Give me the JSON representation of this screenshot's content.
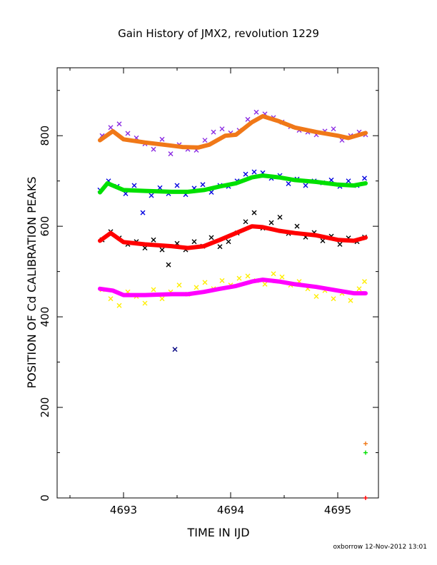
{
  "chart_data": {
    "type": "scatter",
    "title": "Gain History of JMX2, revolution 1229",
    "xlabel": "TIME IN IJD",
    "ylabel": "POSITION OF Cd CALIBRATION PEAKS",
    "xlim": [
      4692.38,
      4695.38
    ],
    "ylim": [
      0,
      950
    ],
    "x_ticks": [
      4693,
      4694,
      4695
    ],
    "x_tick_labels": [
      "4693",
      "4694",
      "4695"
    ],
    "y_ticks": [
      0,
      200,
      400,
      600,
      800
    ],
    "y_tick_labels": [
      "0",
      "200",
      "400",
      "600",
      "800"
    ],
    "grid": false,
    "footer": "oxborrow 12-Nov-2012 13:01",
    "series": [
      {
        "color": "#8a2be2",
        "marker": "x",
        "x": [
          4692.8,
          4692.88,
          4692.96,
          4693.04,
          4693.12,
          4693.2,
          4693.28,
          4693.36,
          4693.44,
          4693.52,
          4693.6,
          4693.68,
          4693.76,
          4693.84,
          4693.92,
          4694.0,
          4694.08,
          4694.16,
          4694.24,
          4694.32,
          4694.4,
          4694.48,
          4694.56,
          4694.64,
          4694.72,
          4694.8,
          4694.88,
          4694.96,
          4695.04,
          4695.12,
          4695.2,
          4695.26
        ],
        "y": [
          800,
          818,
          826,
          805,
          795,
          782,
          770,
          792,
          760,
          780,
          770,
          768,
          790,
          808,
          815,
          806,
          812,
          836,
          852,
          848,
          840,
          830,
          820,
          812,
          808,
          802,
          810,
          815,
          790,
          800,
          808,
          802
        ]
      },
      {
        "color": "#f07818",
        "marker": "line",
        "x": [
          4692.78,
          4692.9,
          4693.0,
          4693.2,
          4693.45,
          4693.55,
          4693.7,
          4693.8,
          4693.95,
          4694.05,
          4694.2,
          4694.3,
          4694.45,
          4694.6,
          4694.8,
          4695.0,
          4695.1,
          4695.26
        ],
        "y": [
          790,
          810,
          792,
          785,
          778,
          775,
          774,
          780,
          800,
          802,
          830,
          843,
          832,
          818,
          808,
          800,
          795,
          806
        ]
      },
      {
        "color": "#0000e0",
        "marker": "x",
        "x": [
          4692.78,
          4692.86,
          4692.94,
          4693.02,
          4693.1,
          4693.18,
          4693.26,
          4693.34,
          4693.42,
          4693.5,
          4693.58,
          4693.66,
          4693.74,
          4693.82,
          4693.9,
          4693.98,
          4694.06,
          4694.14,
          4694.22,
          4694.3,
          4694.38,
          4694.46,
          4694.54,
          4694.62,
          4694.7,
          4694.78,
          4694.86,
          4694.94,
          4695.02,
          4695.1,
          4695.18,
          4695.25
        ],
        "y": [
          680,
          700,
          688,
          672,
          690,
          630,
          668,
          685,
          672,
          690,
          670,
          684,
          692,
          675,
          690,
          688,
          700,
          715,
          720,
          718,
          706,
          712,
          694,
          704,
          690,
          700,
          696,
          702,
          688,
          700,
          690,
          706
        ]
      },
      {
        "color": "#00e000",
        "marker": "line",
        "x": [
          4692.78,
          4692.85,
          4693.0,
          4693.2,
          4693.45,
          4693.6,
          4693.75,
          4693.9,
          4694.05,
          4694.2,
          4694.3,
          4694.45,
          4694.6,
          4694.8,
          4695.0,
          4695.15,
          4695.26
        ],
        "y": [
          675,
          695,
          680,
          678,
          676,
          676,
          680,
          688,
          695,
          708,
          712,
          708,
          702,
          698,
          692,
          690,
          695
        ]
      },
      {
        "color": "#000000",
        "marker": "x",
        "x": [
          4692.8,
          4692.88,
          4692.96,
          4693.04,
          4693.12,
          4693.2,
          4693.28,
          4693.36,
          4693.42,
          4693.5,
          4693.58,
          4693.66,
          4693.74,
          4693.82,
          4693.9,
          4693.98,
          4694.06,
          4694.14,
          4694.22,
          4694.3,
          4694.38,
          4694.46,
          4694.54,
          4694.62,
          4694.7,
          4694.78,
          4694.86,
          4694.94,
          4695.02,
          4695.1,
          4695.18,
          4695.25
        ],
        "y": [
          570,
          588,
          574,
          560,
          566,
          552,
          570,
          548,
          515,
          562,
          548,
          566,
          556,
          575,
          555,
          566,
          585,
          610,
          630,
          596,
          608,
          620,
          584,
          600,
          576,
          586,
          568,
          578,
          560,
          574,
          566,
          576
        ]
      },
      {
        "color": "#ff0000",
        "marker": "line",
        "x": [
          4692.78,
          4692.88,
          4693.0,
          4693.2,
          4693.45,
          4693.6,
          4693.75,
          4693.9,
          4694.05,
          4694.2,
          4694.3,
          4694.45,
          4694.6,
          4694.8,
          4695.0,
          4695.15,
          4695.26
        ],
        "y": [
          568,
          585,
          565,
          560,
          556,
          552,
          556,
          570,
          585,
          600,
          598,
          590,
          585,
          580,
          570,
          568,
          575
        ]
      },
      {
        "color": "#ffee00",
        "marker": "x",
        "x": [
          4692.8,
          4692.88,
          4692.96,
          4693.04,
          4693.12,
          4693.2,
          4693.28,
          4693.36,
          4693.44,
          4693.52,
          4693.6,
          4693.68,
          4693.76,
          4693.84,
          4693.92,
          4694.0,
          4694.08,
          4694.16,
          4694.24,
          4694.32,
          4694.4,
          4694.48,
          4694.56,
          4694.64,
          4694.72,
          4694.8,
          4694.88,
          4694.96,
          4695.04,
          4695.12,
          4695.2,
          4695.25
        ],
        "y": [
          460,
          440,
          425,
          455,
          445,
          430,
          460,
          440,
          455,
          470,
          450,
          465,
          476,
          462,
          480,
          470,
          485,
          490,
          480,
          472,
          495,
          488,
          470,
          478,
          462,
          445,
          458,
          440,
          452,
          436,
          462,
          478
        ]
      },
      {
        "color": "#ff00ff",
        "marker": "line",
        "x": [
          4692.78,
          4692.9,
          4693.0,
          4693.2,
          4693.45,
          4693.6,
          4693.75,
          4693.9,
          4694.05,
          4694.2,
          4694.3,
          4694.45,
          4694.6,
          4694.8,
          4695.0,
          4695.15,
          4695.26
        ],
        "y": [
          462,
          458,
          448,
          448,
          450,
          450,
          455,
          462,
          468,
          478,
          482,
          478,
          472,
          466,
          458,
          452,
          452
        ]
      },
      {
        "color": "#000080",
        "marker": "x",
        "x": [
          4693.48
        ],
        "y": [
          328
        ]
      },
      {
        "color": "#f07818",
        "marker": "+",
        "x": [
          4695.26
        ],
        "y": [
          120
        ]
      },
      {
        "color": "#00e000",
        "marker": "+",
        "x": [
          4695.26
        ],
        "y": [
          100
        ]
      },
      {
        "color": "#ff0000",
        "marker": "+",
        "x": [
          4695.26
        ],
        "y": [
          0
        ]
      }
    ]
  }
}
